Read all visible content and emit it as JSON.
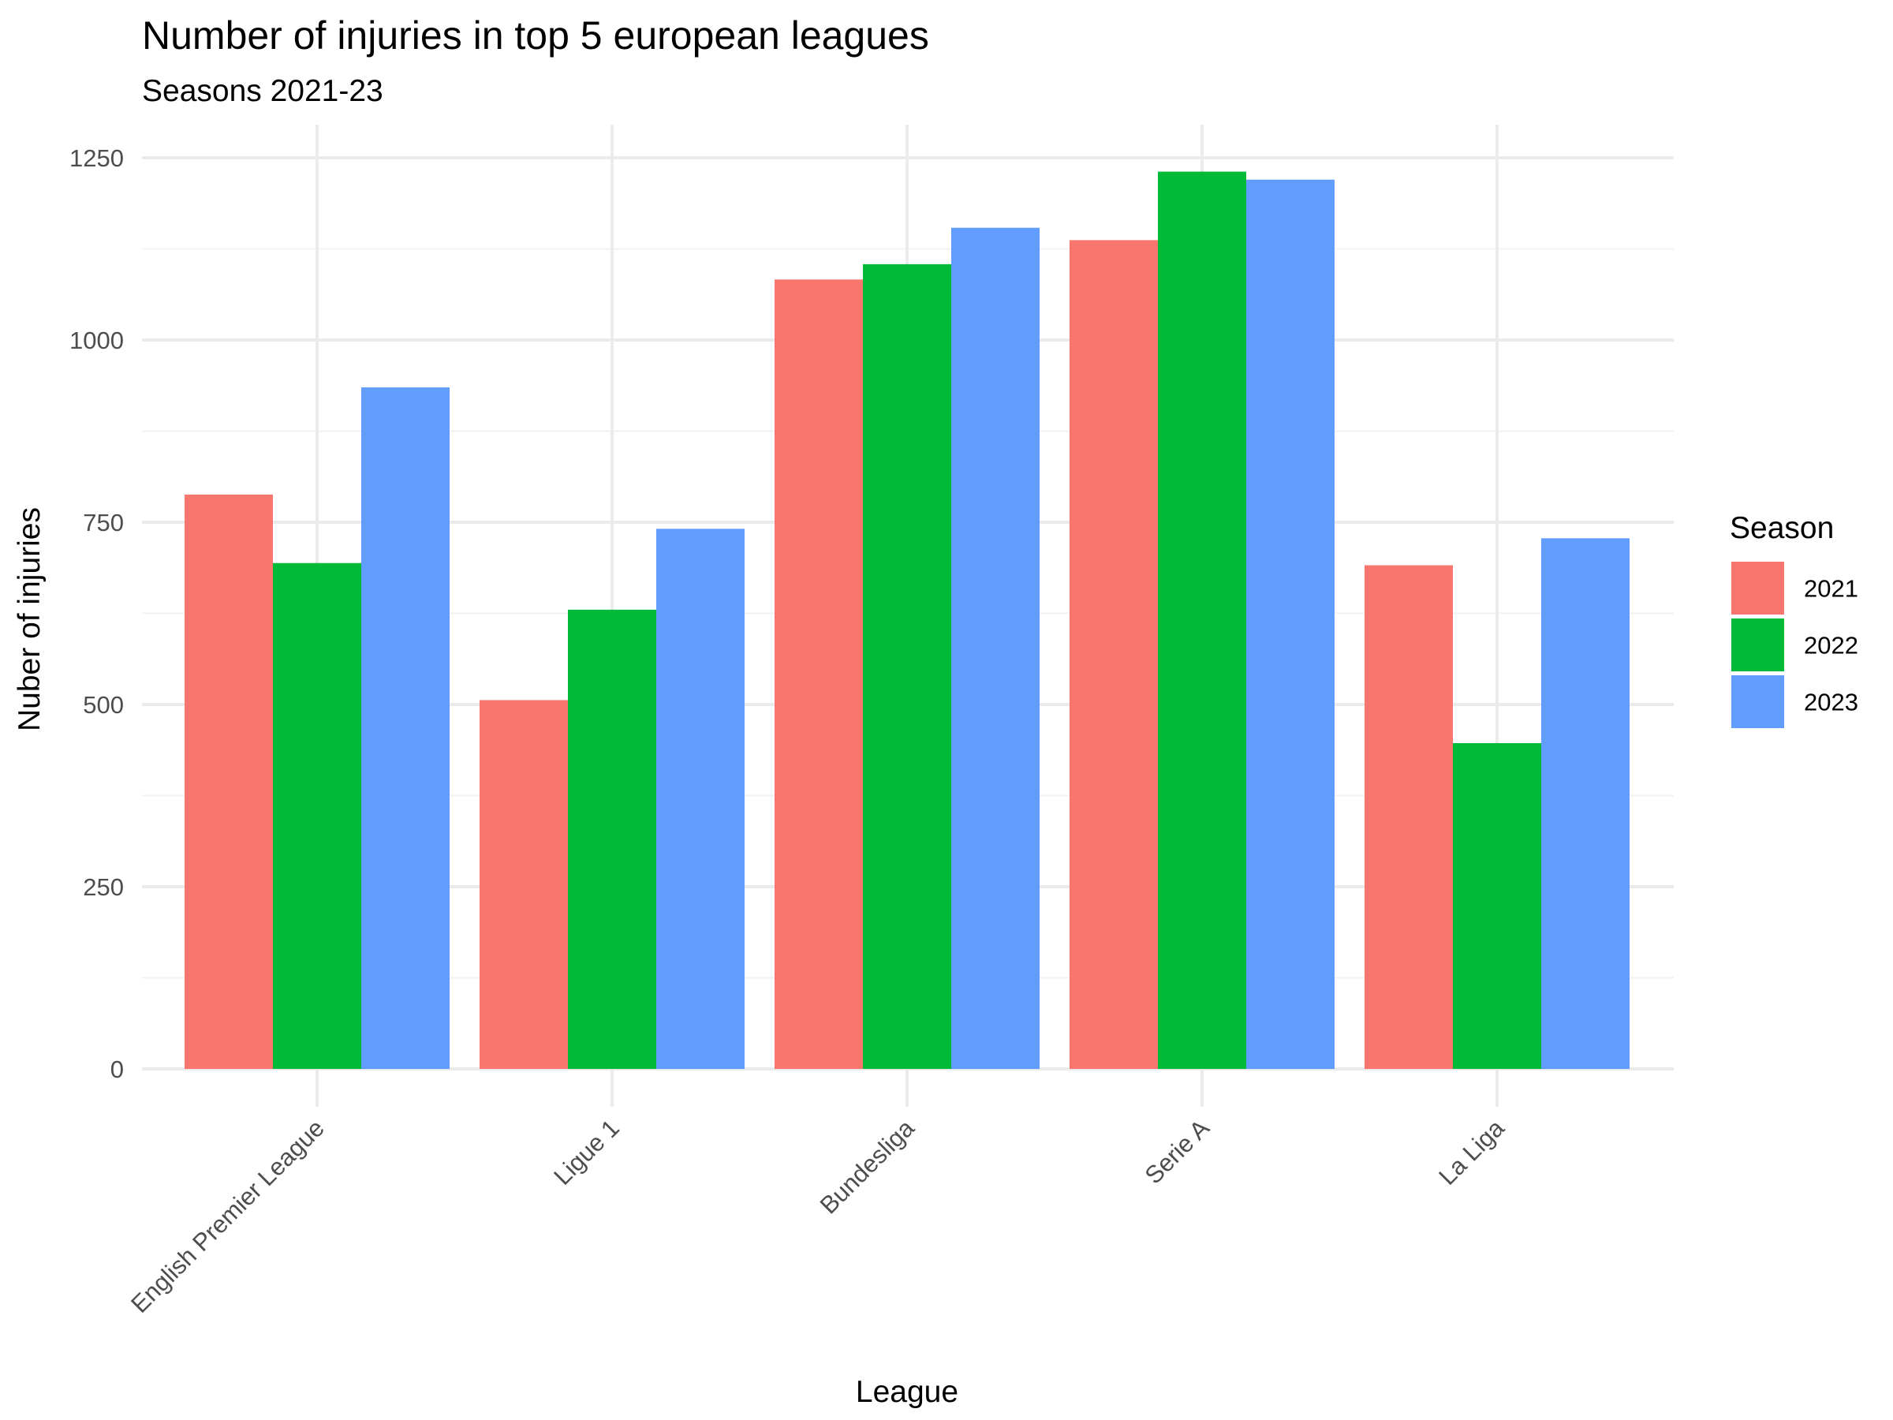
{
  "chart_data": {
    "type": "bar",
    "title": "Number of injuries in top 5 european leagues",
    "subtitle": "Seasons 2021-23",
    "xlabel": "League",
    "ylabel": "Nuber of injuries",
    "categories": [
      "English Premier League",
      "Ligue 1",
      "Bundesliga",
      "Serie A",
      "La Liga"
    ],
    "series": [
      {
        "name": "2021",
        "color": "#F8766D",
        "values": [
          788,
          506,
          1083,
          1137,
          691
        ]
      },
      {
        "name": "2022",
        "color": "#00BA38",
        "values": [
          694,
          630,
          1104,
          1231,
          447
        ]
      },
      {
        "name": "2023",
        "color": "#619CFF",
        "values": [
          935,
          741,
          1154,
          1220,
          728
        ]
      }
    ],
    "ylim": [
      0,
      1250
    ],
    "yticks": [
      0,
      250,
      500,
      750,
      1000,
      1250
    ],
    "grid": true,
    "legend": {
      "title": "Season",
      "position": "right"
    }
  }
}
